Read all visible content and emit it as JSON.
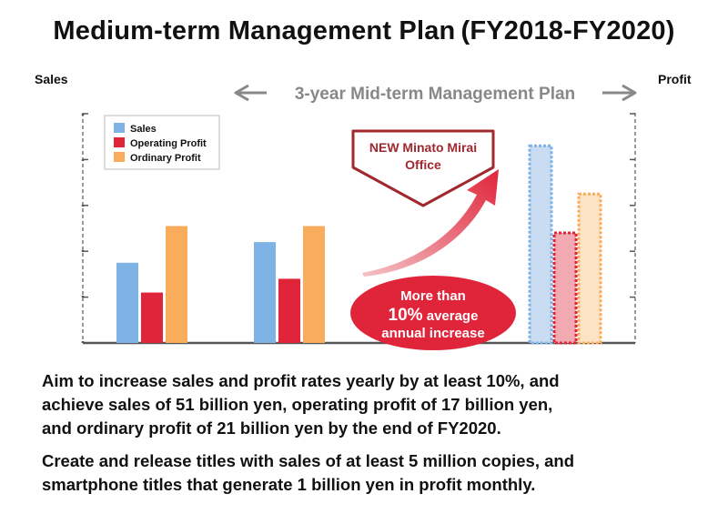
{
  "title": "Medium-term Management Plan (FY2018-FY2020)",
  "left_axis_label": "Sales",
  "right_axis_label": "Profit",
  "plan_label": "3-year Mid-term Management Plan",
  "callout_office": [
    "NEW Minato Mirai",
    "Office"
  ],
  "callout_increase": [
    "More than",
    "10% average",
    "annual increase"
  ],
  "chart_data": {
    "type": "bar",
    "categories": [
      "",
      "",
      ""
    ],
    "series": [
      {
        "name": "Sales",
        "values": [
          1.75,
          2.2,
          4.3
        ],
        "color": "#7fb2e5"
      },
      {
        "name": "Operating Profit",
        "values": [
          1.1,
          1.4,
          2.4
        ],
        "color": "#e0243a"
      },
      {
        "name": "Ordinary Profit",
        "values": [
          2.55,
          2.55,
          3.25
        ],
        "color": "#f9ad5c"
      }
    ],
    "ylim": [
      0,
      5
    ],
    "third_group_planned": true,
    "legend_position": "top-left",
    "grid": false
  },
  "body_text": {
    "paragraph1": [
      "Aim to increase sales and profit rates yearly by at least 10%, and",
      "achieve sales of 51 billion yen, operating profit of 17 billion yen,",
      "and ordinary profit of 21 billion yen by the end of FY2020."
    ],
    "paragraph2": [
      "Create and release titles with sales of at least 5 million copies, and",
      "smartphone titles that generate 1 billion yen in profit monthly."
    ]
  },
  "colors": {
    "arrow_gray": "#888888",
    "callout_red": "#e0243a",
    "callout_border": "#a0282e"
  }
}
